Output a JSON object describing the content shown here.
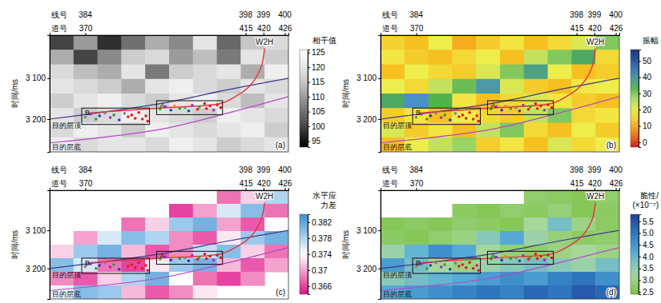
{
  "chart_data": {
    "type": "heatmap",
    "line_label": "线号",
    "x_label": "道号",
    "y_label": "时间/ms",
    "xlim": [
      360,
      427
    ],
    "xticks": [
      370,
      415,
      420,
      426
    ],
    "line_numbers": [
      384,
      398,
      399,
      400
    ],
    "ylim": [
      2995,
      3280
    ],
    "yticks": [
      {
        "value": 3100,
        "label": "3 100"
      },
      {
        "value": 3200,
        "label": "3 200"
      }
    ],
    "cell_x": [
      360,
      366.7,
      373.4,
      380.1,
      386.8,
      393.5,
      400.2,
      406.9,
      413.6,
      420.3,
      427
    ],
    "cell_y": [
      2995,
      3030.6,
      3066.3,
      3101.9,
      3137.5,
      3173.1,
      3208.8,
      3244.4,
      3280
    ],
    "series": [
      {
        "name": "目的层顶",
        "type": "line",
        "color": "#3c3a8c",
        "x": [
          360,
          391,
          410,
          427
        ],
        "y": [
          3200,
          3162,
          3128,
          3100
        ]
      },
      {
        "name": "目的层底",
        "type": "line",
        "color": "#b548c6",
        "x": [
          360,
          391,
          410,
          427
        ],
        "y": [
          3258,
          3225,
          3185,
          3145
        ]
      },
      {
        "name": "W2H",
        "type": "line",
        "color": "#e8323c",
        "x": [
          420.3,
          419.2,
          415.8,
          411.3,
          407.9,
          391,
          370.7
        ],
        "y": [
          3027,
          3076,
          3122,
          3149,
          3162,
          3173,
          3185
        ]
      },
      {
        "type": "scatter",
        "marker": "circle",
        "x": [
          391,
          392.5,
          394,
          395,
          396.5,
          398,
          399,
          400,
          401.5,
          402,
          403.5,
          404,
          405,
          406,
          407,
          408,
          370,
          371.5,
          373,
          374,
          375.5,
          377,
          378,
          379.5,
          381,
          382,
          383,
          384,
          385,
          386,
          387,
          387.5
        ],
        "y": [
          3175,
          3170,
          3178,
          3168,
          3174,
          3172,
          3180,
          3166,
          3176,
          3170,
          3162,
          3174,
          3168,
          3178,
          3165,
          3172,
          3195,
          3188,
          3200,
          3192,
          3185,
          3196,
          3190,
          3202,
          3186,
          3194,
          3190,
          3198,
          3184,
          3200,
          3192,
          3205
        ],
        "colors": [
          "#2ca02c",
          "#9b30c8",
          "#1f3fbf",
          "#ff8c00",
          "#2ca02c",
          "#808080",
          "#1f3fbf",
          "#9b30c8",
          "#e41a1c",
          "#2ca02c",
          "#e41a1c",
          "#e41a1c",
          "#e41a1c",
          "#9b30c8",
          "#e41a1c",
          "#e41a1c",
          "#808080",
          "#9b30c8",
          "#2ca02c",
          "#1f3fbf",
          "#808080",
          "#9b30c8",
          "#2ca02c",
          "#1f3fbf",
          "#808080",
          "#e41a1c",
          "#e41a1c",
          "#e41a1c",
          "#e41a1c",
          "#e41a1c",
          "#e41a1c",
          "#e41a1c"
        ]
      }
    ],
    "boxes": [
      {
        "label": "A",
        "x": [
          390,
          408.5
        ],
        "y": [
          3155,
          3189
        ]
      },
      {
        "label": "B",
        "x": [
          369,
          388
        ],
        "y": [
          3173,
          3213
        ]
      }
    ],
    "panels": [
      {
        "label": "(a)",
        "colorbar_title": [
          "相干值"
        ],
        "colorbar_lim": [
          93,
          126
        ],
        "colorbar_ticks": [
          95,
          100,
          105,
          110,
          115,
          120,
          125
        ],
        "cells": [
          [
            100,
            110,
            98,
            105,
            112,
            108,
            120,
            104,
            115,
            118
          ],
          [
            112,
            100,
            108,
            116,
            118,
            110,
            114,
            106,
            120,
            116
          ],
          [
            118,
            114,
            112,
            120,
            106,
            116,
            118,
            120,
            112,
            122
          ],
          [
            120,
            118,
            116,
            112,
            120,
            122,
            118,
            116,
            120,
            118
          ],
          [
            116,
            120,
            122,
            118,
            116,
            120,
            122,
            118,
            114,
            120
          ],
          [
            120,
            116,
            118,
            122,
            120,
            118,
            116,
            122,
            120,
            118
          ],
          [
            118,
            122,
            120,
            116,
            122,
            120,
            118,
            120,
            122,
            116
          ],
          [
            122,
            118,
            120,
            120,
            118,
            122,
            120,
            116,
            118,
            120
          ]
        ]
      },
      {
        "label": "(b)",
        "colorbar_title": [
          "振幅"
        ],
        "colorbar_lim": [
          -3,
          57
        ],
        "colorbar_ticks": [
          0,
          10,
          20,
          30,
          40,
          50
        ],
        "cells": [
          [
            15,
            12,
            20,
            10,
            14,
            18,
            12,
            16,
            22,
            30
          ],
          [
            18,
            14,
            12,
            16,
            20,
            12,
            24,
            30,
            36,
            16
          ],
          [
            12,
            20,
            16,
            14,
            22,
            30,
            38,
            20,
            12,
            14
          ],
          [
            20,
            16,
            24,
            32,
            40,
            22,
            14,
            12,
            18,
            20
          ],
          [
            36,
            42,
            34,
            18,
            12,
            16,
            22,
            18,
            14,
            12
          ],
          [
            14,
            18,
            12,
            20,
            16,
            14,
            24,
            30,
            16,
            18
          ],
          [
            22,
            14,
            18,
            12,
            24,
            30,
            16,
            12,
            20,
            14
          ],
          [
            12,
            20,
            24,
            28,
            14,
            18,
            12,
            22,
            16,
            20
          ]
        ]
      },
      {
        "label": "(c)",
        "colorbar_title": [
          "水平应",
          "力差"
        ],
        "colorbar_lim": [
          0.364,
          0.384
        ],
        "colorbar_ticks": [
          0.366,
          0.37,
          0.374,
          0.378,
          0.382
        ],
        "cells": [
          [
            null,
            null,
            null,
            null,
            null,
            null,
            null,
            0.368,
            0.372,
            0.378
          ],
          [
            null,
            null,
            null,
            null,
            null,
            0.366,
            0.37,
            0.376,
            0.38,
            0.368
          ],
          [
            null,
            null,
            null,
            0.368,
            0.372,
            0.379,
            0.381,
            0.37,
            0.367,
            0.374
          ],
          [
            null,
            0.37,
            0.376,
            0.38,
            0.378,
            0.369,
            0.367,
            0.373,
            0.379,
            0.381
          ],
          [
            0.372,
            0.379,
            0.381,
            0.371,
            0.367,
            0.369,
            0.377,
            0.38,
            0.372,
            0.368
          ],
          [
            0.38,
            0.376,
            0.368,
            0.366,
            0.373,
            0.379,
            0.381,
            0.371,
            0.367,
            0.37
          ],
          [
            0.369,
            0.367,
            0.372,
            0.378,
            0.381,
            0.374,
            0.368,
            0.366,
            0.369,
            null
          ],
          [
            0.375,
            0.38,
            0.379,
            0.371,
            0.367,
            0.369,
            0.373,
            null,
            null,
            null
          ]
        ]
      },
      {
        "label": "(d)",
        "colorbar_title": [
          "脆性/",
          "(×10⁻⁷)"
        ],
        "colorbar_lim": [
          2.4,
          5.8
        ],
        "colorbar_ticks": [
          2.5,
          {
            "value": 3,
            "label": "3.0"
          },
          3.5,
          {
            "value": 4,
            "label": "4.0"
          },
          4.5,
          {
            "value": 5,
            "label": "5.0"
          },
          5.5
        ],
        "cells": [
          [
            null,
            null,
            null,
            null,
            null,
            null,
            2.8,
            2.7,
            2.6,
            2.8
          ],
          [
            null,
            null,
            null,
            2.7,
            2.6,
            2.8,
            2.7,
            2.9,
            2.6,
            2.7
          ],
          [
            2.6,
            2.7,
            2.6,
            2.8,
            2.7,
            2.6,
            3.2,
            3.8,
            3.0,
            2.7
          ],
          [
            2.7,
            2.6,
            2.8,
            3.0,
            3.6,
            4.2,
            3.4,
            2.9,
            2.7,
            2.8
          ],
          [
            3.4,
            4.0,
            4.6,
            4.2,
            3.2,
            2.9,
            2.8,
            3.0,
            3.2,
            3.0
          ],
          [
            4.4,
            3.8,
            3.2,
            3.0,
            3.4,
            3.6,
            3.8,
            3.6,
            3.4,
            3.8
          ],
          [
            3.6,
            3.8,
            4.0,
            4.2,
            4.4,
            4.6,
            4.4,
            4.8,
            5.0,
            4.6
          ],
          [
            4.2,
            4.4,
            4.6,
            4.8,
            5.0,
            4.8,
            5.2,
            5.0,
            5.4,
            5.2
          ]
        ]
      }
    ]
  }
}
